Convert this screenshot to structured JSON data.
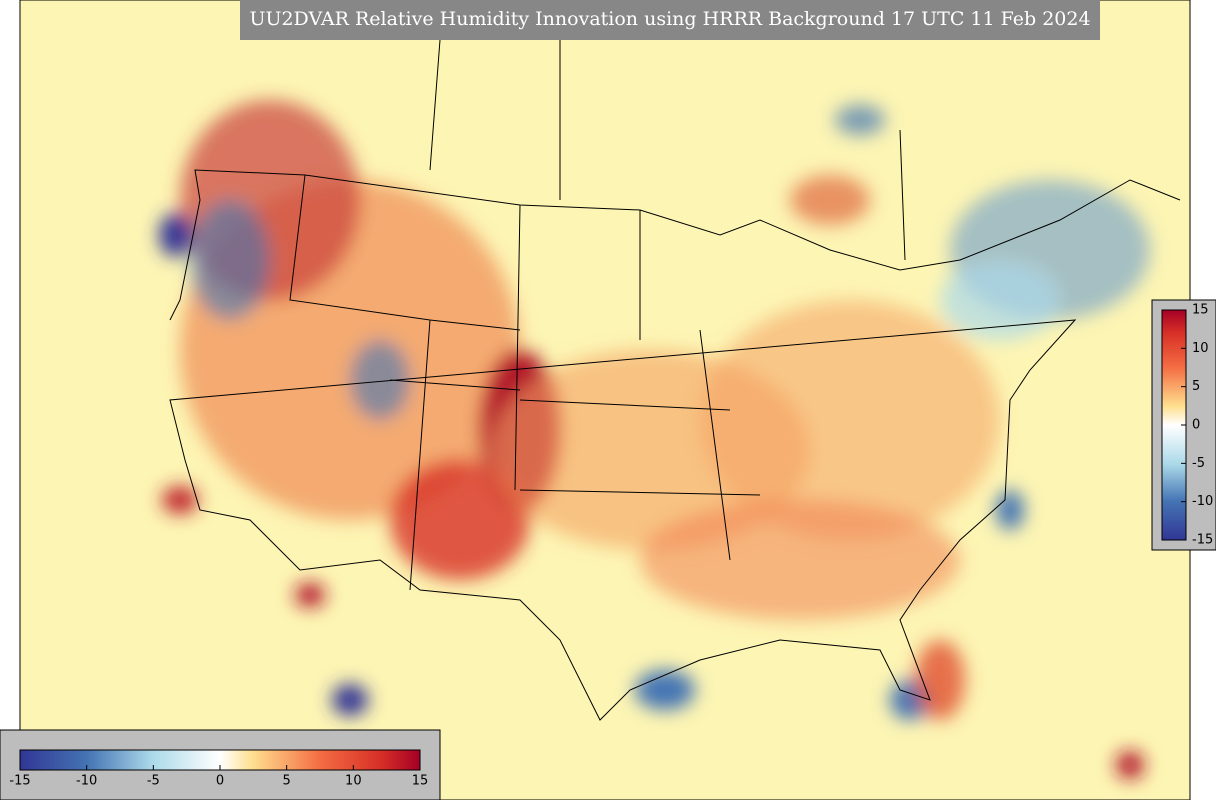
{
  "title": "UU2DVAR Relative Humidity Innovation using HRRR Background 17 UTC 11 Feb 2024",
  "colorbar": {
    "min": -15,
    "max": 15,
    "ticks": [
      -15,
      -10,
      -5,
      0,
      5,
      10,
      15
    ]
  }
}
